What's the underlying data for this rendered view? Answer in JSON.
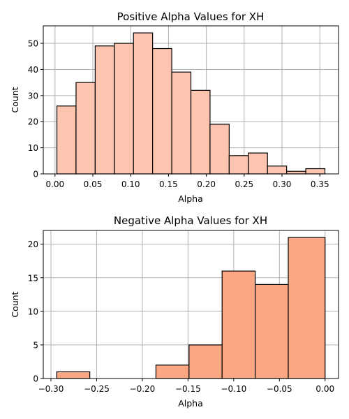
{
  "chart_data": [
    {
      "type": "bar",
      "title": "Positive Alpha Values for XH",
      "xlabel": "Alpha",
      "ylabel": "Count",
      "bin_edges": [
        0.0025,
        0.0278,
        0.0531,
        0.0784,
        0.1037,
        0.129,
        0.1543,
        0.1796,
        0.2049,
        0.2302,
        0.2555,
        0.2808,
        0.3061,
        0.3314,
        0.3567
      ],
      "values": [
        26,
        35,
        49,
        50,
        54,
        48,
        39,
        32,
        19,
        7,
        8,
        3,
        1,
        2
      ],
      "xlim": [
        -0.0155,
        0.3747
      ],
      "ylim": [
        0,
        56.7
      ],
      "xticks": [
        0.0,
        0.05,
        0.1,
        0.15,
        0.2,
        0.25,
        0.3,
        0.35
      ],
      "xtick_labels": [
        "0.00",
        "0.05",
        "0.10",
        "0.15",
        "0.20",
        "0.25",
        "0.30",
        "0.35"
      ],
      "yticks": [
        0,
        10,
        20,
        30,
        40,
        50
      ],
      "ytick_labels": [
        "0",
        "10",
        "20",
        "30",
        "40",
        "50"
      ],
      "grid": true,
      "color": "#fdc5b0"
    },
    {
      "type": "bar",
      "title": "Negative Alpha Values for XH",
      "xlabel": "Alpha",
      "ylabel": "Count",
      "bin_edges": [
        -0.2937,
        -0.2575,
        -0.2213,
        -0.1851,
        -0.1489,
        -0.1127,
        -0.0765,
        -0.0403,
        0.0
      ],
      "values": [
        1,
        0,
        0,
        2,
        5,
        16,
        14,
        21
      ],
      "xlim": [
        -0.3084,
        0.0147
      ],
      "ylim": [
        0,
        22.05
      ],
      "xticks": [
        -0.3,
        -0.25,
        -0.2,
        -0.15,
        -0.1,
        -0.05,
        0.0
      ],
      "xtick_labels": [
        "−0.30",
        "−0.25",
        "−0.20",
        "−0.15",
        "−0.10",
        "−0.05",
        "0.00"
      ],
      "yticks": [
        0,
        5,
        10,
        15,
        20
      ],
      "ytick_labels": [
        "0",
        "5",
        "10",
        "15",
        "20"
      ],
      "grid": true,
      "color": "#fca784"
    }
  ]
}
